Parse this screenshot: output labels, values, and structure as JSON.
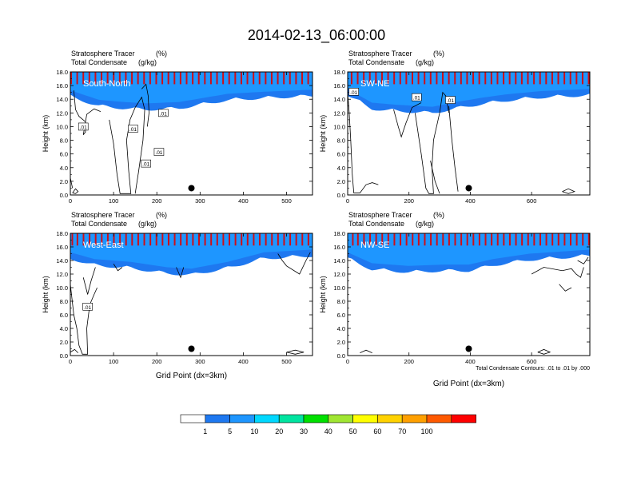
{
  "title": "2014-02-13_06:00:00",
  "colors": {
    "levels": [
      "#ffffff",
      "#1e78f0",
      "#1e96ff",
      "#00d8ff",
      "#00e4a0",
      "#00e000",
      "#a0e632",
      "#ffff00",
      "#ffd200",
      "#ffa000",
      "#ff5a00",
      "#ff0000"
    ]
  },
  "colorbar": {
    "labels": [
      "1",
      "5",
      "10",
      "20",
      "30",
      "40",
      "50",
      "60",
      "70",
      "100"
    ]
  },
  "contour_note": "Total Condensate Contours: .01 to .01 by .000",
  "chart_data": [
    {
      "type": "heatmap",
      "panel_label": "South-North",
      "field_title": "Stratosphere Tracer",
      "field_units": "(%)",
      "contour_title": "Total Condensate",
      "contour_units": "(g/kg)",
      "ylabel": "Height (km)",
      "xlabel": "",
      "xlim": [
        0,
        560
      ],
      "ylim": [
        0,
        18
      ],
      "xticks": [
        0,
        100,
        200,
        300,
        400,
        500
      ],
      "yticks": [
        "0.0",
        "2.0",
        "4.0",
        "6.0",
        "8.0",
        "10.0",
        "12.0",
        "14.0",
        "16.0",
        "18.0"
      ],
      "marker": {
        "x": 280,
        "y": 1.0
      },
      "contour_labels": [
        {
          "text": ".01",
          "x": 30,
          "y": 10.0
        },
        {
          "text": ".01",
          "x": 145,
          "y": 9.7
        },
        {
          "text": ".01",
          "x": 215,
          "y": 12.0
        },
        {
          "text": ".01",
          "x": 205,
          "y": 6.3
        },
        {
          "text": ".01",
          "x": 175,
          "y": 4.6
        }
      ]
    },
    {
      "type": "heatmap",
      "panel_label": "SW-NE",
      "field_title": "Stratosphere Tracer",
      "field_units": "(%)",
      "contour_title": "Total Condensate",
      "contour_units": "(g/kg)",
      "ylabel": "Height (km)",
      "xlabel": "",
      "xlim": [
        0,
        790
      ],
      "ylim": [
        0,
        18
      ],
      "xticks": [
        0,
        200,
        400,
        600
      ],
      "yticks": [
        "0.0",
        "2.0",
        "4.0",
        "6.0",
        "8.0",
        "10.0",
        "12.0",
        "14.0",
        "16.0",
        "18.0"
      ],
      "marker": {
        "x": 395,
        "y": 1.0
      },
      "contour_labels": [
        {
          "text": ".01",
          "x": 20,
          "y": 15.1
        },
        {
          "text": ".01",
          "x": 225,
          "y": 14.3
        },
        {
          "text": ".01",
          "x": 335,
          "y": 13.9
        }
      ]
    },
    {
      "type": "heatmap",
      "panel_label": "West-East",
      "field_title": "Stratosphere Tracer",
      "field_units": "(%)",
      "contour_title": "Total Condensate",
      "contour_units": "(g/kg)",
      "ylabel": "Height (km)",
      "xlabel": "Grid Point (dx=3km)",
      "xlim": [
        0,
        560
      ],
      "ylim": [
        0,
        18
      ],
      "xticks": [
        0,
        100,
        200,
        300,
        400,
        500
      ],
      "yticks": [
        "0.0",
        "2.0",
        "4.0",
        "6.0",
        "8.0",
        "10.0",
        "12.0",
        "14.0",
        "16.0",
        "18.0"
      ],
      "marker": {
        "x": 280,
        "y": 1.0
      },
      "contour_labels": [
        {
          "text": ".01",
          "x": 40,
          "y": 7.2
        }
      ]
    },
    {
      "type": "heatmap",
      "panel_label": "NW-SE",
      "field_title": "Stratosphere Tracer",
      "field_units": "(%)",
      "contour_title": "Total Condensate",
      "contour_units": "(g/kg)",
      "ylabel": "Height (km)",
      "xlabel": "Grid Point (dx=3km)",
      "xlim": [
        0,
        790
      ],
      "ylim": [
        0,
        18
      ],
      "xticks": [
        0,
        200,
        400,
        600
      ],
      "yticks": [
        "0.0",
        "2.0",
        "4.0",
        "6.0",
        "8.0",
        "10.0",
        "12.0",
        "14.0",
        "16.0",
        "18.0"
      ],
      "marker": {
        "x": 395,
        "y": 1.0
      },
      "contour_labels": []
    }
  ]
}
